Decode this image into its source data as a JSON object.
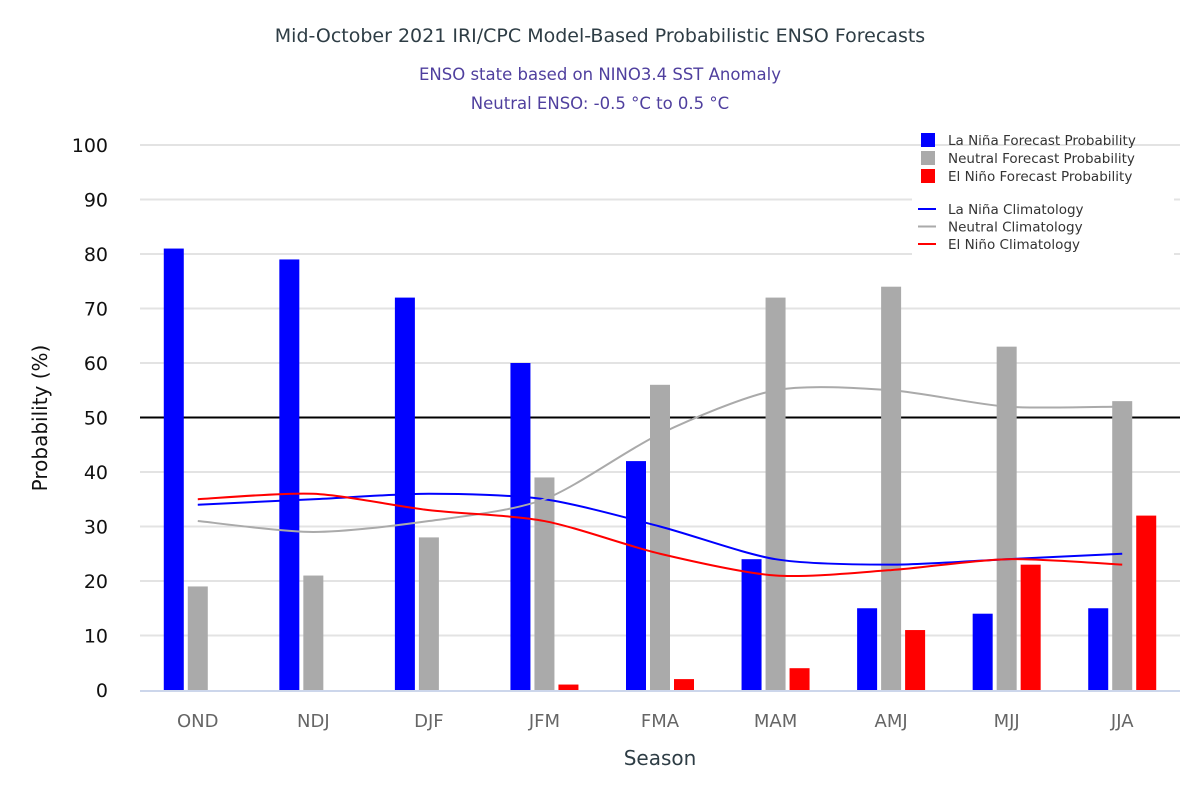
{
  "chart_data": {
    "type": "bar",
    "title": "Mid-October 2021 IRI/CPC Model-Based Probabilistic ENSO Forecasts",
    "subtitle_lines": [
      "ENSO state based on NINO3.4 SST Anomaly",
      "Neutral ENSO: -0.5 °C to 0.5 °C"
    ],
    "xlabel": "Season",
    "ylabel": "Probability (%)",
    "ylim": [
      0,
      100
    ],
    "yticks": [
      0,
      10,
      20,
      30,
      40,
      50,
      60,
      70,
      80,
      90,
      100
    ],
    "grid": true,
    "reference_line": 50,
    "legend_position": "top-right",
    "categories": [
      "OND",
      "NDJ",
      "DJF",
      "JFM",
      "FMA",
      "MAM",
      "AMJ",
      "MJJ",
      "JJA"
    ],
    "series": [
      {
        "name": "La Niña Forecast Probability",
        "kind": "bar",
        "color": "#0000ff",
        "values": [
          81,
          79,
          72,
          60,
          42,
          24,
          15,
          14,
          15
        ]
      },
      {
        "name": "Neutral Forecast Probability",
        "kind": "bar",
        "color": "#aaaaaa",
        "values": [
          19,
          21,
          28,
          39,
          56,
          72,
          74,
          63,
          53
        ]
      },
      {
        "name": "El Niño Forecast Probability",
        "kind": "bar",
        "color": "#ff0000",
        "values": [
          0,
          0,
          0,
          1,
          2,
          4,
          11,
          23,
          32
        ]
      },
      {
        "name": "La Niña Climatology",
        "kind": "line",
        "color": "#0000ff",
        "values": [
          34,
          35,
          36,
          35,
          30,
          24,
          23,
          24,
          25
        ]
      },
      {
        "name": "Neutral Climatology",
        "kind": "line",
        "color": "#aaaaaa",
        "values": [
          31,
          29,
          31,
          35,
          47,
          55,
          55,
          52,
          52
        ]
      },
      {
        "name": "El Niño Climatology",
        "kind": "line",
        "color": "#ff0000",
        "values": [
          35,
          36,
          33,
          31,
          25,
          21,
          22,
          24,
          23
        ]
      }
    ]
  }
}
